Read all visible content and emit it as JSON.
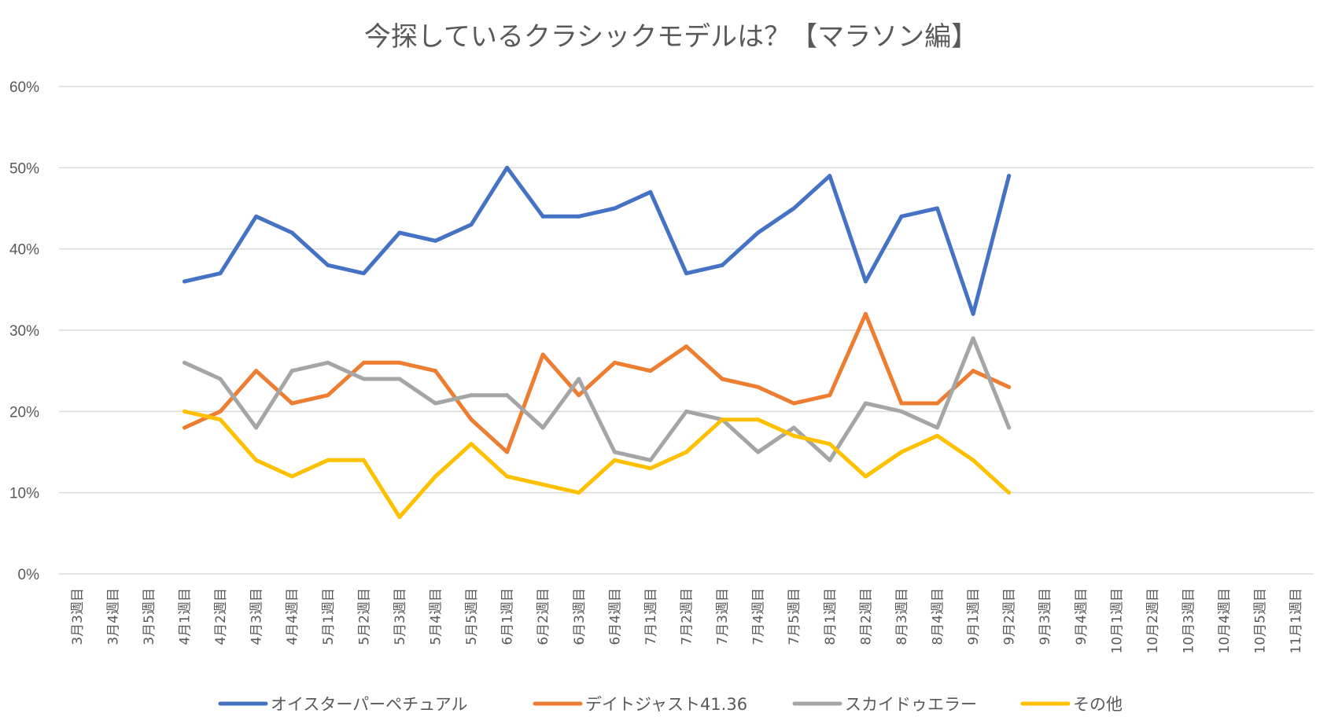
{
  "chart_data": {
    "type": "line",
    "title": "今探しているクラシックモデルは？【マラソン編】",
    "xlabel": "",
    "ylabel": "",
    "ylim": [
      0,
      0.6
    ],
    "yticks": [
      "0%",
      "10%",
      "20%",
      "30%",
      "40%",
      "50%",
      "60%"
    ],
    "grid": true,
    "legend": "bottom",
    "categories": [
      "3月3週目",
      "3月4週目",
      "3月5週目",
      "4月1週目",
      "4月2週目",
      "4月3週目",
      "4月4週目",
      "5月1週目",
      "5月2週目",
      "5月3週目",
      "5月4週目",
      "5月5週目",
      "6月1週目",
      "6月2週目",
      "6月3週目",
      "6月4週目",
      "7月1週目",
      "7月2週目",
      "7月3週目",
      "7月4週目",
      "7月5週目",
      "8月1週目",
      "8月2週目",
      "8月3週目",
      "8月4週目",
      "9月1週目",
      "9月2週目",
      "9月3週目",
      "9月4週目",
      "10月1週目",
      "10月2週目",
      "10月3週目",
      "10月4週目",
      "10月5週目",
      "11月1週目"
    ],
    "series": [
      {
        "name": "オイスターパーペチュアル",
        "color": "#4472c4",
        "values": [
          null,
          null,
          null,
          0.36,
          0.37,
          0.44,
          0.42,
          0.38,
          0.37,
          0.42,
          0.41,
          0.43,
          0.5,
          0.44,
          0.44,
          0.45,
          0.47,
          0.37,
          0.38,
          0.42,
          0.45,
          0.49,
          0.36,
          0.44,
          0.45,
          0.32,
          0.49,
          null,
          null,
          null,
          null,
          null,
          null,
          null,
          null
        ]
      },
      {
        "name": "デイトジャスト41.36",
        "color": "#ed7d31",
        "values": [
          null,
          null,
          null,
          0.18,
          0.2,
          0.25,
          0.21,
          0.22,
          0.26,
          0.26,
          0.25,
          0.19,
          0.15,
          0.27,
          0.22,
          0.26,
          0.25,
          0.28,
          0.24,
          0.23,
          0.21,
          0.22,
          0.32,
          0.21,
          0.21,
          0.25,
          0.23,
          null,
          null,
          null,
          null,
          null,
          null,
          null,
          null
        ]
      },
      {
        "name": "スカイドゥエラー",
        "color": "#a5a5a5",
        "values": [
          null,
          null,
          null,
          0.26,
          0.24,
          0.18,
          0.25,
          0.26,
          0.24,
          0.24,
          0.21,
          0.22,
          0.22,
          0.18,
          0.24,
          0.15,
          0.14,
          0.2,
          0.19,
          0.15,
          0.18,
          0.14,
          0.21,
          0.2,
          0.18,
          0.29,
          0.18,
          null,
          null,
          null,
          null,
          null,
          null,
          null,
          null
        ]
      },
      {
        "name": "その他",
        "color": "#ffc000",
        "values": [
          null,
          null,
          null,
          0.2,
          0.19,
          0.14,
          0.12,
          0.14,
          0.14,
          0.07,
          0.12,
          0.16,
          0.12,
          0.11,
          0.1,
          0.14,
          0.13,
          0.15,
          0.19,
          0.19,
          0.17,
          0.16,
          0.12,
          0.15,
          0.17,
          0.14,
          0.1,
          null,
          null,
          null,
          null,
          null,
          null,
          null,
          null
        ]
      }
    ]
  }
}
